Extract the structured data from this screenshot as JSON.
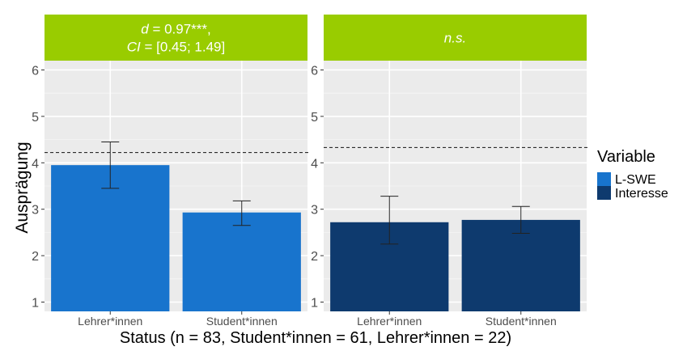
{
  "chart_data": {
    "type": "bar",
    "ylabel": "Ausprägung",
    "xlabel": "Status (n = 83, Student*innen = 61, Lehrer*innen = 22)",
    "ylim": [
      0.8,
      6.2
    ],
    "yticks": [
      "1",
      "2",
      "3",
      "4",
      "5",
      "6"
    ],
    "grid": true,
    "legend": {
      "title": "Variable",
      "position": "right",
      "entries": [
        {
          "label": "L-SWE",
          "color": "#1874cd"
        },
        {
          "label": "Interesse",
          "color": "#0e3a6e"
        }
      ]
    },
    "panels": [
      {
        "strip_label": "d = 0.97***, CI = [0.45; 1.49]",
        "strip_lines": [
          [
            {
              "text": "d",
              "italic": true
            },
            {
              "text": " = 0.97***,",
              "italic": false
            }
          ],
          [
            {
              "text": "CI",
              "italic": true
            },
            {
              "text": " = [0.45; 1.49]",
              "italic": false
            }
          ]
        ],
        "strip_color": "#99cc00",
        "series": "L-SWE",
        "bar_color": "#1874cd",
        "categories": [
          "Lehrer*innen",
          "Student*innen"
        ],
        "values": [
          3.95,
          2.93
        ],
        "error_low": [
          3.45,
          2.65
        ],
        "error_high": [
          4.45,
          3.18
        ],
        "reference_line": 4.22
      },
      {
        "strip_label": "n.s.",
        "strip_lines": [
          [
            {
              "text": "n.s.",
              "italic": true
            }
          ]
        ],
        "strip_color": "#99cc00",
        "series": "Interesse",
        "bar_color": "#0e3a6e",
        "categories": [
          "Lehrer*innen",
          "Student*innen"
        ],
        "values": [
          2.72,
          2.77
        ],
        "error_low": [
          2.25,
          2.48
        ],
        "error_high": [
          3.28,
          3.06
        ],
        "reference_line": 4.33
      }
    ]
  }
}
